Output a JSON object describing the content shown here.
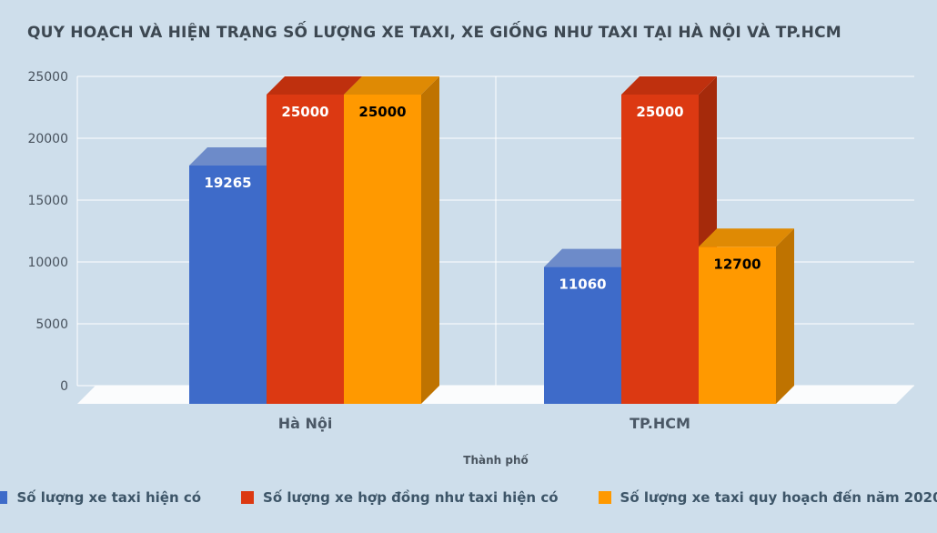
{
  "title": "QUY HOẠCH VÀ HIỆN TRẠNG SỐ LƯỢNG XE TAXI, XE GIỐNG NHƯ TAXI TẠI HÀ NỘI VÀ TP.HCM",
  "chart_data": {
    "type": "bar",
    "style": "3d-column",
    "categories": [
      "Hà Nội",
      "TP.HCM"
    ],
    "series": [
      {
        "name": "Số lượng xe taxi hiện có",
        "color": "#3e6bc9",
        "top_color": "#6d8bc9",
        "side_color": "#2a4c9b",
        "label_color": "#ffffff",
        "values": [
          19265,
          11060
        ]
      },
      {
        "name": "Số lượng xe hợp đồng như taxi hiện có",
        "color": "#dc3912",
        "top_color": "#bf300e",
        "side_color": "#a52a0b",
        "label_color": "#ffffff",
        "values": [
          25000,
          25000
        ]
      },
      {
        "name": "Số lượng xe taxi quy hoạch đến năm 2020",
        "color": "#ff9900",
        "top_color": "#df8a04",
        "side_color": "#bf7300",
        "label_color": "#000000",
        "values": [
          25000,
          12700
        ]
      }
    ],
    "xlabel": "Thành phố",
    "ylabel": "",
    "ylim": [
      0,
      25000
    ],
    "yticks": [
      0,
      5000,
      10000,
      15000,
      20000,
      25000
    ],
    "grid": true,
    "data_labels": true,
    "legend_position": "bottom"
  },
  "colors": {
    "background": "#cedeeb",
    "title_text": "#3d4852",
    "axis_text": "#48525d",
    "gridline": "#ffffff",
    "floor": "#fbfcfd"
  }
}
